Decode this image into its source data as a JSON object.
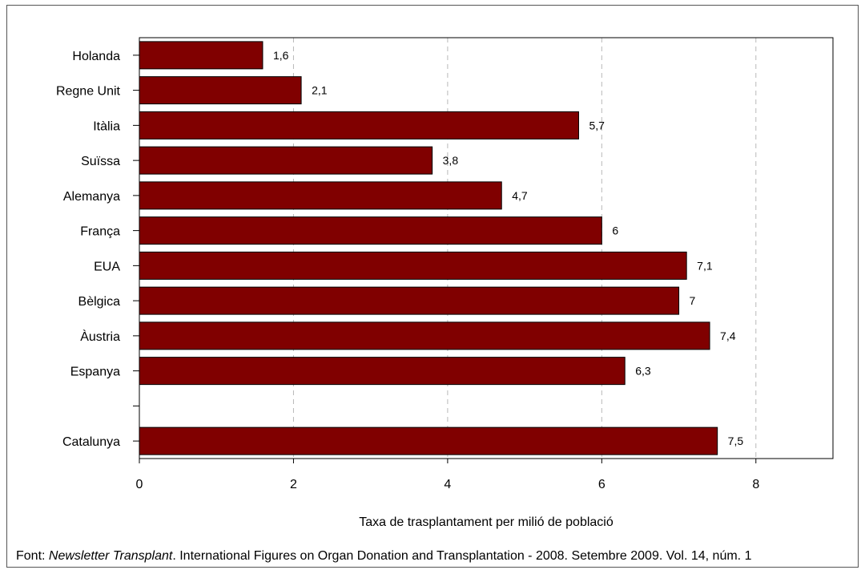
{
  "chart_data": {
    "type": "bar",
    "orientation": "horizontal",
    "categories": [
      "Holanda",
      "Regne Unit",
      "Itàlia",
      "Suïssa",
      "Alemanya",
      "França",
      "EUA",
      "Bèlgica",
      "Àustria",
      "Espanya",
      "",
      "Catalunya"
    ],
    "values": [
      1.6,
      2.1,
      5.7,
      3.8,
      4.7,
      6,
      7.1,
      7,
      7.4,
      6.3,
      null,
      7.5
    ],
    "value_labels": [
      "1,6",
      "2,1",
      "5,7",
      "3,8",
      "4,7",
      "6",
      "7,1",
      "7",
      "7,4",
      "6,3",
      "",
      "7,5"
    ],
    "xlabel": "Taxa de trasplantament per milió de població",
    "ylabel": "",
    "xlim": [
      0,
      9
    ],
    "xticks": [
      0,
      2,
      4,
      6,
      8
    ],
    "grid": "vertical dashed",
    "bar_color": "#800000"
  },
  "source": {
    "prefix": "Font: ",
    "publication": "Newsletter Transplant",
    "rest": ". International Figures on Organ Donation and Transplantation - 2008. Setembre 2009. Vol. 14, núm. 1"
  }
}
